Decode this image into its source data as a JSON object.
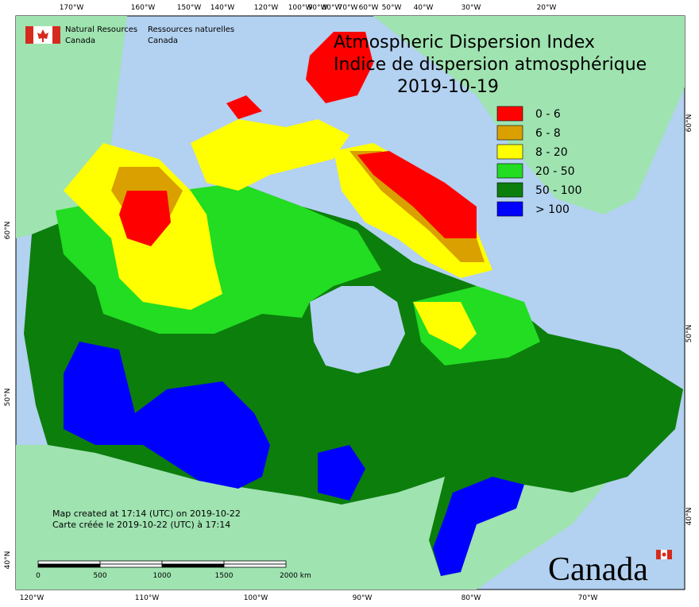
{
  "header": {
    "agency_en": [
      "Natural Resources",
      "Canada"
    ],
    "agency_fr": [
      "Ressources naturelles",
      "Canada"
    ]
  },
  "title": {
    "en": "Atmospheric Dispersion Index",
    "fr": "Indice de dispersion atmosphérique",
    "date": "2019-10-19"
  },
  "legend": [
    {
      "label": "0 - 6",
      "color": "#ff0000"
    },
    {
      "label": "6 - 8",
      "color": "#d9a000"
    },
    {
      "label": "8 - 20",
      "color": "#ffff00"
    },
    {
      "label": "20 - 50",
      "color": "#22dd22"
    },
    {
      "label": "50 - 100",
      "color": "#0c7e0c"
    },
    {
      "label": "> 100",
      "color": "#0000ff"
    }
  ],
  "top_labels": [
    "170°W",
    "160°W",
    "150°W",
    "140°W",
    "120°W",
    "100°W",
    "90°W",
    "80°W",
    "70°W",
    "60°W",
    "50°W",
    "40°W",
    "30°W",
    "20°W"
  ],
  "bottom_labels": [
    "120°W",
    "110°W",
    "100°W",
    "90°W",
    "80°W",
    "70°W"
  ],
  "left_labels": [
    "60°N",
    "50°N",
    "40°N"
  ],
  "right_labels": [
    "60°N",
    "50°N",
    "40°N"
  ],
  "footer": [
    "Map created at 17:14 (UTC) on 2019-10-22",
    "Carte créée le 2019-10-22 (UTC) à 17:14"
  ],
  "scale": [
    "0",
    "500",
    "1000",
    "1500",
    "2000 km"
  ],
  "wordmark": "Canada"
}
